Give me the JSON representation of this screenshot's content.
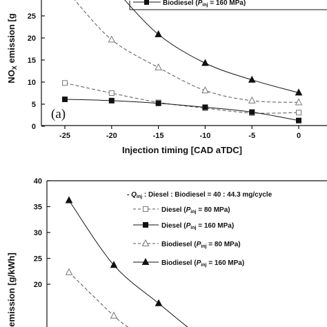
{
  "chart_data": [
    {
      "type": "line",
      "panel_label": "(a)",
      "xlabel": "Injection timing [CAD aTDC]",
      "ylabel_parts": {
        "pre": "NO",
        "sub": "X",
        "post": " emission [g"
      },
      "x": [
        -25,
        -20,
        -15,
        -10,
        -5,
        0
      ],
      "xlim": [
        -27,
        1.5
      ],
      "ylim": [
        0,
        28
      ],
      "y_ticks": [
        0,
        5,
        10,
        15,
        20,
        25
      ],
      "x_tick_labels": [
        "-25",
        "-20",
        "-15",
        "-10",
        "-5",
        "0"
      ],
      "y_tick_labels": [
        "0",
        "5",
        "10",
        "15",
        "20",
        "25"
      ],
      "legend_visible": {
        "pre": "Biodiesel (",
        "p": "P",
        "sub": "inj",
        "post": " = 160 MPa)"
      },
      "series": [
        {
          "name": "Diesel (Pinj = 80 MPa)",
          "marker": "square-open",
          "dash": true,
          "values": [
            9.8,
            7.5,
            5.4,
            4.1,
            3.0,
            3.1
          ]
        },
        {
          "name": "Diesel (Pinj = 160 MPa)",
          "marker": "square-filled",
          "dash": false,
          "values": [
            6.1,
            5.8,
            5.2,
            4.3,
            3.2,
            1.3
          ]
        },
        {
          "name": "Biodiesel (Pinj = 80 MPa)",
          "marker": "triangle-open",
          "dash": true,
          "values": [
            null,
            19.6,
            13.3,
            8.1,
            5.8,
            5.4
          ]
        },
        {
          "name": "Biodiesel (Pinj = 160 MPa)",
          "marker": "triangle-filled",
          "dash": false,
          "values": [
            null,
            null,
            20.8,
            14.3,
            10.5,
            7.6
          ]
        }
      ]
    },
    {
      "type": "line",
      "ylabel": "emission [g/kWh]",
      "ylim": [
        15,
        40
      ],
      "y_ticks": [
        20,
        25,
        30,
        35,
        40
      ],
      "y_tick_labels": [
        "20",
        "25",
        "30",
        "35",
        "40"
      ],
      "x": [
        -25,
        -20,
        -15
      ],
      "legend": [
        {
          "pre": "- ",
          "q": "Q",
          "sub": "inj",
          "post": " : Diesel : Biodiesel = 40 : 44.3 mg/cycle"
        },
        {
          "pre": "Diesel (",
          "p": "P",
          "sub": "inj",
          "post": " = 80 MPa)"
        },
        {
          "pre": "Diesel (",
          "p": "P",
          "sub": "inj",
          "post": " = 160 MPa)"
        },
        {
          "pre": "Biodiesel (",
          "p": "P",
          "sub": "inj",
          "post": " = 80 MPa)"
        },
        {
          "pre": "Biodiesel (",
          "p": "P",
          "sub": "inj",
          "post": " = 160 MPa)"
        }
      ],
      "series": [
        {
          "name": "Diesel (Pinj = 80 MPa)",
          "marker": "square-open",
          "dash": true,
          "values": [
            null,
            null,
            null
          ]
        },
        {
          "name": "Diesel (Pinj = 160 MPa)",
          "marker": "square-filled",
          "dash": false,
          "values": [
            null,
            null,
            null
          ]
        },
        {
          "name": "Biodiesel (Pinj = 80 MPa)",
          "marker": "triangle-open",
          "dash": true,
          "values": [
            22.3,
            13.9,
            null
          ]
        },
        {
          "name": "Biodiesel (Pinj = 160 MPa)",
          "marker": "triangle-filled",
          "dash": false,
          "values": [
            36.2,
            23.7,
            16.3
          ]
        }
      ]
    }
  ]
}
